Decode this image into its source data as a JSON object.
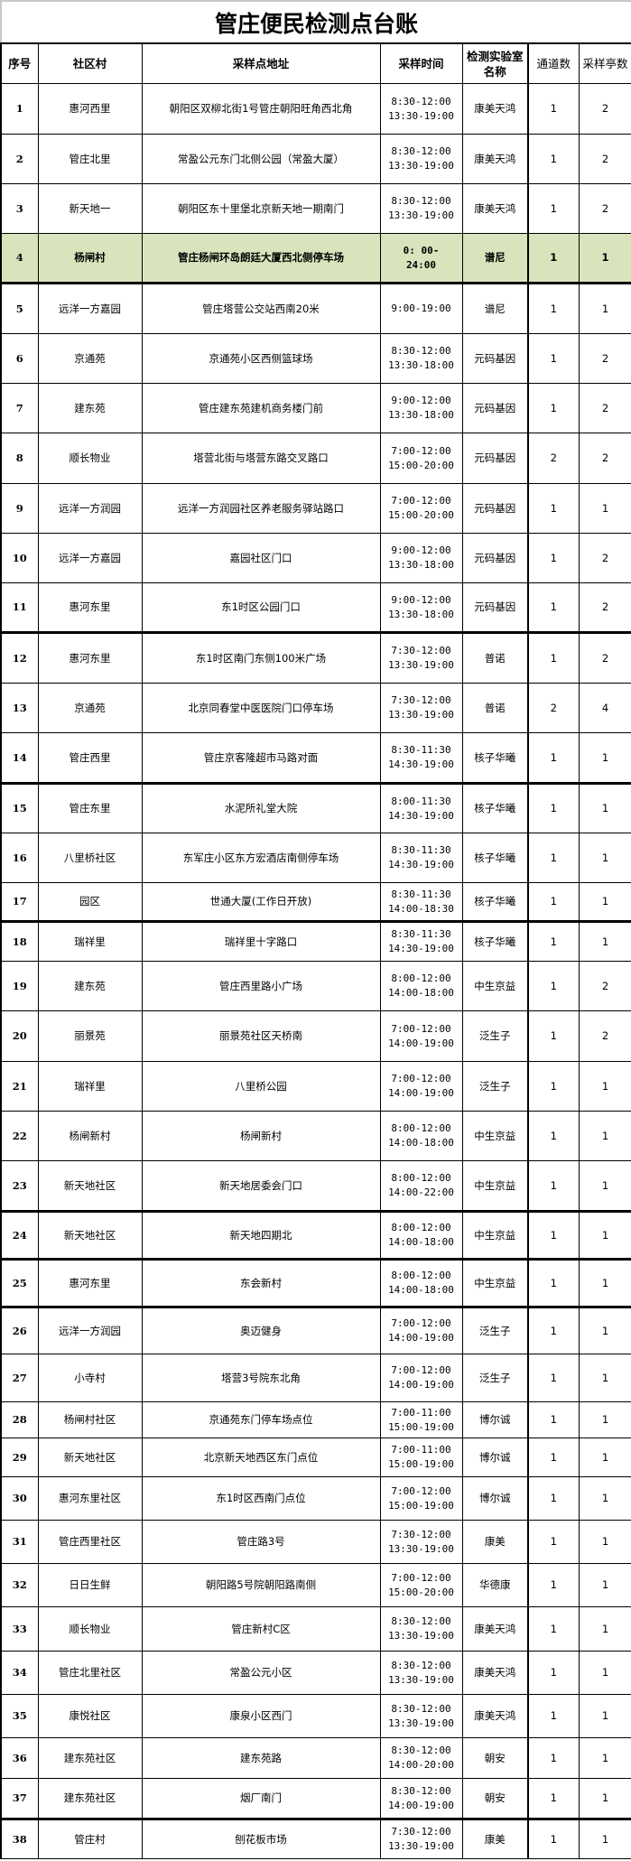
{
  "title": "管庄便民检测点台账",
  "headers": {
    "seq": "序号",
    "community": "社区村",
    "address": "采样点地址",
    "time": "采样时间",
    "lab": "检测实验室名称",
    "channels": "通道数",
    "booths": "采样亭数"
  },
  "highlight_color": "#d8e4bc",
  "rows": [
    {
      "seq": "1",
      "community": "惠河西里",
      "address": "朝阳区双柳北街1号管庄朝阳旺角西北角",
      "time1": "8:30-12:00",
      "time2": "13:30-19:00",
      "lab": "康美天鸿",
      "channels": "1",
      "booths": "2"
    },
    {
      "seq": "2",
      "community": "管庄北里",
      "address": "常盈公元东门北侧公园（常盈大厦）",
      "time1": "8:30-12:00",
      "time2": "13:30-19:00",
      "lab": "康美天鸿",
      "channels": "1",
      "booths": "2"
    },
    {
      "seq": "3",
      "community": "新天地一",
      "address": "朝阳区东十里堡北京新天地一期南门",
      "time1": "8:30-12:00",
      "time2": "13:30-19:00",
      "lab": "康美天鸿",
      "channels": "1",
      "booths": "2"
    },
    {
      "seq": "4",
      "community": "杨闸村",
      "address": "管庄杨闸环岛朗廷大厦西北侧停车场",
      "time1": "0: 00-",
      "time2": "24:00",
      "lab": "谱尼",
      "channels": "1",
      "booths": "1",
      "highlight": true
    },
    {
      "seq": "5",
      "community": "远洋一方嘉园",
      "address": "管庄塔营公交站西南20米",
      "time1": "9:00-19:00",
      "time2": "",
      "lab": "谱尼",
      "channels": "1",
      "booths": "1"
    },
    {
      "seq": "6",
      "community": "京通苑",
      "address": "京通苑小区西侧篮球场",
      "time1": "8:30-12:00",
      "time2": "13:30-18:00",
      "lab": "元码基因",
      "channels": "1",
      "booths": "2"
    },
    {
      "seq": "7",
      "community": "建东苑",
      "address": "管庄建东苑建机商务楼门前",
      "time1": "9:00-12:00",
      "time2": "13:30-18:00",
      "lab": "元码基因",
      "channels": "1",
      "booths": "2"
    },
    {
      "seq": "8",
      "community": "顺长物业",
      "address": "塔营北街与塔营东路交叉路口",
      "time1": "7:00-12:00",
      "time2": "15:00-20:00",
      "lab": "元码基因",
      "channels": "2",
      "booths": "2"
    },
    {
      "seq": "9",
      "community": "远洋一方润园",
      "address": "远洋一方润园社区养老服务驿站路口",
      "time1": "7:00-12:00",
      "time2": "15:00-20:00",
      "lab": "元码基因",
      "channels": "1",
      "booths": "1"
    },
    {
      "seq": "10",
      "community": "远洋一方嘉园",
      "address": "嘉园社区门口",
      "time1": "9:00-12:00",
      "time2": "13:30-18:00",
      "lab": "元码基因",
      "channels": "1",
      "booths": "2"
    },
    {
      "seq": "11",
      "community": "惠河东里",
      "address": "东1时区公园门口",
      "time1": "9:00-12:00",
      "time2": "13:30-18:00",
      "lab": "元码基因",
      "channels": "1",
      "booths": "2"
    },
    {
      "seq": "12",
      "community": "惠河东里",
      "address": "东1时区南门东侧100米广场",
      "time1": "7:30-12:00",
      "time2": "13:30-19:00",
      "lab": "普诺",
      "channels": "1",
      "booths": "2"
    },
    {
      "seq": "13",
      "community": "京通苑",
      "address": "北京同春堂中医医院门口停车场",
      "time1": "7:30-12:00",
      "time2": "13:30-19:00",
      "lab": "普诺",
      "channels": "2",
      "booths": "4"
    },
    {
      "seq": "14",
      "community": "管庄西里",
      "address": "管庄京客隆超市马路对面",
      "time1": "8:30-11:30",
      "time2": "14:30-19:00",
      "lab": "核子华曦",
      "channels": "1",
      "booths": "1"
    },
    {
      "seq": "15",
      "community": "管庄东里",
      "address": "水泥所礼堂大院",
      "time1": "8:00-11:30",
      "time2": "14:30-19:00",
      "lab": "核子华曦",
      "channels": "1",
      "booths": "1"
    },
    {
      "seq": "16",
      "community": "八里桥社区",
      "address": "东军庄小区东方宏酒店南侧停车场",
      "time1": "8:30-11:30",
      "time2": "14:30-19:00",
      "lab": "核子华曦",
      "channels": "1",
      "booths": "1"
    },
    {
      "seq": "17",
      "community": "园区",
      "address": "世通大厦(工作日开放)",
      "time1": "8:30-11:30",
      "time2": "14:00-18:30",
      "lab": "核子华曦",
      "channels": "1",
      "booths": "1"
    },
    {
      "seq": "18",
      "community": "瑞祥里",
      "address": "瑞祥里十字路口",
      "time1": "8:30-11:30",
      "time2": "14:30-19:00",
      "lab": "核子华曦",
      "channels": "1",
      "booths": "1"
    },
    {
      "seq": "19",
      "community": "建东苑",
      "address": "管庄西里路小广场",
      "time1": "8:00-12:00",
      "time2": "14:00-18:00",
      "lab": "中生京益",
      "channels": "1",
      "booths": "2"
    },
    {
      "seq": "20",
      "community": "丽景苑",
      "address": "丽景苑社区天桥南",
      "time1": "7:00-12:00",
      "time2": "14:00-19:00",
      "lab": "泛生子",
      "channels": "1",
      "booths": "2"
    },
    {
      "seq": "21",
      "community": "瑞祥里",
      "address": "八里桥公园",
      "time1": "7:00-12:00",
      "time2": "14:00-19:00",
      "lab": "泛生子",
      "channels": "1",
      "booths": "1"
    },
    {
      "seq": "22",
      "community": "杨闸新村",
      "address": "杨闸新村",
      "time1": "8:00-12:00",
      "time2": "14:00-18:00",
      "lab": "中生京益",
      "channels": "1",
      "booths": "1"
    },
    {
      "seq": "23",
      "community": "新天地社区",
      "address": "新天地居委会门口",
      "time1": "8:00-12:00",
      "time2": "14:00-22:00",
      "lab": "中生京益",
      "channels": "1",
      "booths": "1"
    },
    {
      "seq": "24",
      "community": "新天地社区",
      "address": "新天地四期北",
      "time1": "8:00-12:00",
      "time2": "14:00-18:00",
      "lab": "中生京益",
      "channels": "1",
      "booths": "1"
    },
    {
      "seq": "25",
      "community": "惠河东里",
      "address": "东会新村",
      "time1": "8:00-12:00",
      "time2": "14:00-18:00",
      "lab": "中生京益",
      "channels": "1",
      "booths": "1"
    },
    {
      "seq": "26",
      "community": "远洋一方润园",
      "address": "奥迈健身",
      "time1": "7:00-12:00",
      "time2": "14:00-19:00",
      "lab": "泛生子",
      "channels": "1",
      "booths": "1"
    },
    {
      "seq": "27",
      "community": "小寺村",
      "address": "塔营3号院东北角",
      "time1": "7:00-12:00",
      "time2": "14:00-19:00",
      "lab": "泛生子",
      "channels": "1",
      "booths": "1"
    },
    {
      "seq": "28",
      "community": "杨闸村社区",
      "address": "京通苑东门停车场点位",
      "time1": "7:00-11:00",
      "time2": "15:00-19:00",
      "lab": "博尔诚",
      "channels": "1",
      "booths": "1"
    },
    {
      "seq": "29",
      "community": "新天地社区",
      "address": "北京新天地西区东门点位",
      "time1": "7:00-11:00",
      "time2": "15:00-19:00",
      "lab": "博尔诚",
      "channels": "1",
      "booths": "1"
    },
    {
      "seq": "30",
      "community": "惠河东里社区",
      "address": "东1时区西南门点位",
      "time1": "7:00-12:00",
      "time2": "15:00-19:00",
      "lab": "博尔诚",
      "channels": "1",
      "booths": "1"
    },
    {
      "seq": "31",
      "community": "管庄西里社区",
      "address": "管庄路3号",
      "time1": "7:30-12:00",
      "time2": "13:30-19:00",
      "lab": "康美",
      "channels": "1",
      "booths": "1"
    },
    {
      "seq": "32",
      "community": "日日生鲜",
      "address": "朝阳路5号院朝阳路南侧",
      "time1": "7:00-12:00",
      "time2": "15:00-20:00",
      "lab": "华德康",
      "channels": "1",
      "booths": "1"
    },
    {
      "seq": "33",
      "community": "顺长物业",
      "address": "管庄新村C区",
      "time1": "8:30-12:00",
      "time2": "13:30-19:00",
      "lab": "康美天鸿",
      "channels": "1",
      "booths": "1"
    },
    {
      "seq": "34",
      "community": "管庄北里社区",
      "address": "常盈公元小区",
      "time1": "8:30-12:00",
      "time2": "13:30-19:00",
      "lab": "康美天鸿",
      "channels": "1",
      "booths": "1"
    },
    {
      "seq": "35",
      "community": "康悦社区",
      "address": "康泉小区西门",
      "time1": "8:30-12:00",
      "time2": "13:30-19:00",
      "lab": "康美天鸿",
      "channels": "1",
      "booths": "1"
    },
    {
      "seq": "36",
      "community": "建东苑社区",
      "address": "建东苑路",
      "time1": "8:30-12:00",
      "time2": "14:00-20:00",
      "lab": "朝安",
      "channels": "1",
      "booths": "1"
    },
    {
      "seq": "37",
      "community": "建东苑社区",
      "address": "烟厂南门",
      "time1": "8:30-12:00",
      "time2": "14:00-19:00",
      "lab": "朝安",
      "channels": "1",
      "booths": "1"
    },
    {
      "seq": "38",
      "community": "管庄村",
      "address": "刨花板市场",
      "time1": "7:30-12:00",
      "time2": "13:30-19:00",
      "lab": "康美",
      "channels": "1",
      "booths": "1"
    }
  ]
}
